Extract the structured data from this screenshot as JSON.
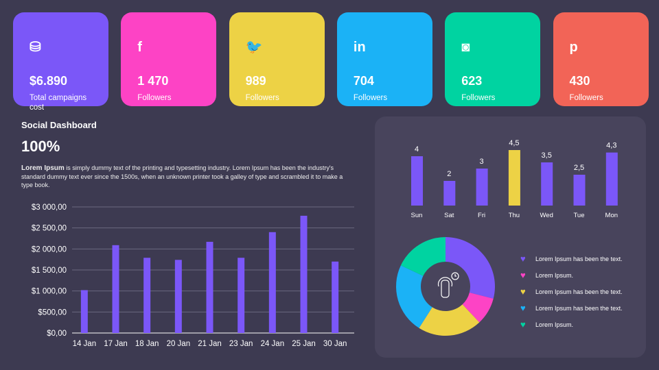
{
  "cards": [
    {
      "icon": "coins-icon",
      "glyph": "⛁",
      "value": "$6.890",
      "label": "Total campaigns cost",
      "color": "#7b57f8"
    },
    {
      "icon": "facebook-icon",
      "glyph": "f",
      "value": "1 470",
      "label": "Followers",
      "color": "#fd43c5"
    },
    {
      "icon": "twitter-icon",
      "glyph": "🐦",
      "value": "989",
      "label": "Followers",
      "color": "#edd245"
    },
    {
      "icon": "linkedin-icon",
      "glyph": "in",
      "value": "704",
      "label": "Followers",
      "color": "#1bb2f6"
    },
    {
      "icon": "instagram-icon",
      "glyph": "◙",
      "value": "623",
      "label": "Followers",
      "color": "#00d3a1"
    },
    {
      "icon": "pinterest-icon",
      "glyph": "p",
      "value": "430",
      "label": "Followers",
      "color": "#f26457"
    }
  ],
  "title": "Social Dashboard",
  "percent": "100%",
  "desc_bold": "Lorem Ipsum",
  "desc": " is  simply dummy text of the printing and typesetting industry. Lorem Ipsum has been the industry's standard dummy text ever since the 1500s, when an unknown printer took a galley of type and scrambled it to make a type book.",
  "chart_data": [
    {
      "type": "bar",
      "categories": [
        "14 Jan",
        "17 Jan",
        "18 Jan",
        "20 Jan",
        "21 Jan",
        "23 Jan",
        "24 Jan",
        "25 Jan",
        "30 Jan"
      ],
      "values": [
        1020,
        2090,
        1790,
        1740,
        2170,
        1790,
        2400,
        2790,
        1700
      ],
      "ylim": [
        0,
        3000
      ],
      "yticks": [
        "$0,00",
        "$500,00",
        "$1 000,00",
        "$1 500,00",
        "$2 000,00",
        "$2 500,00",
        "$3 000,00"
      ],
      "grid": true,
      "color": "#7b57f8"
    },
    {
      "type": "bar",
      "categories": [
        "Sun",
        "Sat",
        "Fri",
        "Thu",
        "Wed",
        "Tue",
        "Mon"
      ],
      "values": [
        4,
        2,
        3,
        4.5,
        3.5,
        2.5,
        4.3
      ],
      "labels": [
        "4",
        "2",
        "3",
        "4,5",
        "3,5",
        "2,5",
        "4,3"
      ],
      "colors": [
        "#7b57f8",
        "#7b57f8",
        "#7b57f8",
        "#edd245",
        "#7b57f8",
        "#7b57f8",
        "#7b57f8"
      ]
    },
    {
      "type": "pie",
      "donut": true,
      "center_icon": "touch-icon",
      "series": [
        {
          "name": "Lorem Ipsum has been the text.",
          "value": 29,
          "color": "#7b57f8"
        },
        {
          "name": "Lorem Ipsum.",
          "value": 9,
          "color": "#fd43c5"
        },
        {
          "name": "Lorem Ipsum has been the text.",
          "value": 21,
          "color": "#edd245"
        },
        {
          "name": "Lorem Ipsum has been the text.",
          "value": 23,
          "color": "#1bb2f6"
        },
        {
          "name": "Lorem Ipsum.",
          "value": 18,
          "color": "#00d3a1"
        }
      ],
      "legend": "right"
    }
  ]
}
